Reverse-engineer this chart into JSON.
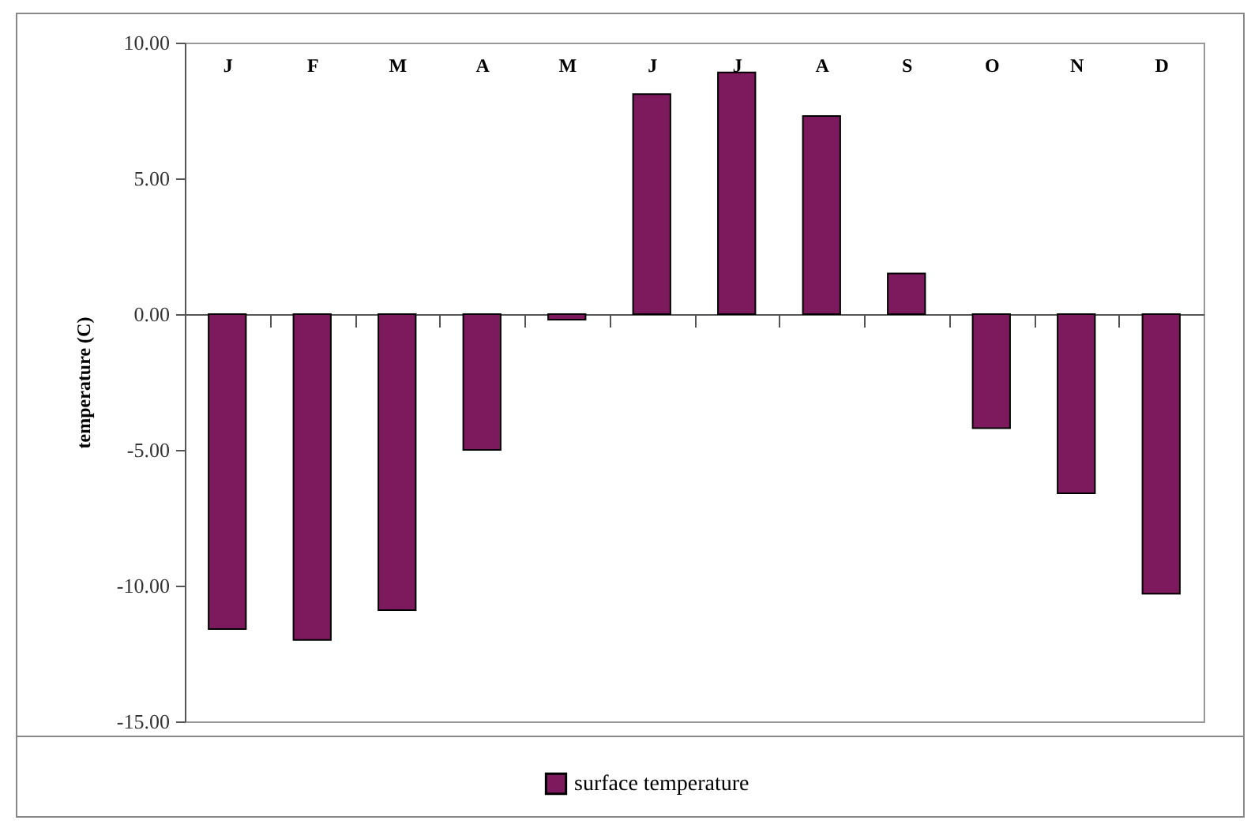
{
  "chart_data": {
    "type": "bar",
    "ylabel": "temperature (C)",
    "categories": [
      "J",
      "F",
      "M",
      "A",
      "M",
      "J",
      "J",
      "A",
      "S",
      "O",
      "N",
      "D"
    ],
    "series": [
      {
        "name": "surface temperature",
        "color": "#7d1a5e",
        "values": [
          -11.6,
          -12.0,
          -10.9,
          -5.0,
          -0.2,
          8.1,
          8.9,
          7.3,
          1.5,
          -4.2,
          -6.6,
          -10.3
        ]
      }
    ],
    "ylim": [
      -15,
      10
    ],
    "yticks": [
      {
        "value": -15,
        "label": "-15.00"
      },
      {
        "value": -10,
        "label": "-10.00"
      },
      {
        "value": -5,
        "label": "-5.00"
      },
      {
        "value": 0,
        "label": "0.00"
      },
      {
        "value": 5,
        "label": "5.00"
      },
      {
        "value": 10,
        "label": "10.00"
      }
    ],
    "legend": "bottom"
  }
}
